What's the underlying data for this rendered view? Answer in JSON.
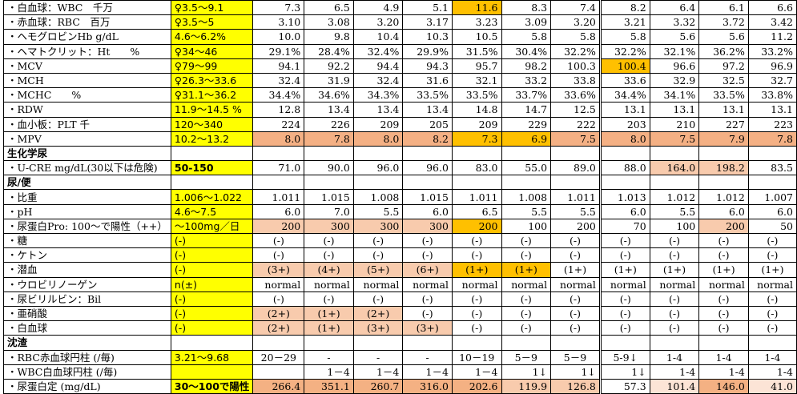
{
  "rows": [
    {
      "label": "・白血球：WBC　千万",
      "ref": "♀3.5～9.1",
      "vals": [
        "7.3",
        "6.5",
        "4.9",
        "5.1",
        "11.6",
        "8.3",
        "7.4",
        "8.2",
        "6.4",
        "6.1",
        "6.6"
      ],
      "fills": [
        "",
        "",
        "",
        "",
        "org",
        "",
        "",
        "",
        "",
        "",
        ""
      ],
      "align": "val"
    },
    {
      "label": "・赤血球：RBC　百万",
      "ref": "♀3.5～5",
      "vals": [
        "3.10",
        "3.08",
        "3.20",
        "3.17",
        "3.23",
        "3.09",
        "3.20",
        "3.21",
        "3.32",
        "3.72",
        "3.42"
      ],
      "fills": [
        "",
        "",
        "",
        "",
        "",
        "",
        "",
        "",
        "",
        "",
        ""
      ],
      "align": "val"
    },
    {
      "label": "・ヘモグロビンHb g/dL",
      "ref": "4.6～6.2%",
      "vals": [
        "10.0",
        "9.8",
        "10.4",
        "10.3",
        "10.5",
        "5.8",
        "5.8",
        "5.8",
        "5.6",
        "5.6",
        "11.2"
      ],
      "fills": [
        "",
        "",
        "",
        "",
        "",
        "",
        "",
        "",
        "",
        "",
        ""
      ],
      "align": "val"
    },
    {
      "label": "・ヘマトクリット：Ht　　%",
      "ref": "♀34～46",
      "vals": [
        "29.1%",
        "28.4%",
        "32.4%",
        "29.9%",
        "31.5%",
        "30.4%",
        "32.2%",
        "32.2%",
        "32.1%",
        "36.2%",
        "33.2%"
      ],
      "fills": [
        "",
        "",
        "",
        "",
        "",
        "",
        "",
        "",
        "",
        "",
        ""
      ],
      "align": "val"
    },
    {
      "label": "・MCV",
      "ref": "♀79～99",
      "vals": [
        "94.1",
        "92.2",
        "94.4",
        "94.3",
        "95.7",
        "98.2",
        "100.3",
        "100.4",
        "96.6",
        "97.2",
        "96.9"
      ],
      "fills": [
        "",
        "",
        "",
        "",
        "",
        "",
        "",
        "org",
        "",
        "",
        ""
      ],
      "align": "val"
    },
    {
      "label": "・MCH",
      "ref": "♀26.3～33.6",
      "vals": [
        "32.4",
        "31.9",
        "32.4",
        "31.6",
        "32.1",
        "33.2",
        "33.8",
        "33.6",
        "32.9",
        "32.5",
        "32.7"
      ],
      "fills": [
        "",
        "",
        "",
        "",
        "",
        "",
        "",
        "",
        "",
        "",
        ""
      ],
      "align": "val"
    },
    {
      "label": "・MCHC　　%",
      "ref": "♀31.1～36.2",
      "vals": [
        "34.4%",
        "34.6%",
        "34.3%",
        "33.5%",
        "33.5%",
        "33.7%",
        "33.6%",
        "34.4%",
        "34.1%",
        "33.5%",
        "33.8%"
      ],
      "fills": [
        "",
        "",
        "",
        "",
        "",
        "",
        "",
        "",
        "",
        "",
        ""
      ],
      "align": "val"
    },
    {
      "label": "・RDW",
      "ref": "11.9～14.5 %",
      "vals": [
        "12.8",
        "13.4",
        "13.4",
        "13.4",
        "14.8",
        "14.7",
        "12.5",
        "13.1",
        "13.1",
        "13.1",
        "13.1"
      ],
      "fills": [
        "",
        "",
        "",
        "",
        "",
        "",
        "",
        "",
        "",
        "",
        ""
      ],
      "align": "val"
    },
    {
      "label": "・血小板：PLT 千",
      "ref": "120～340",
      "vals": [
        "224",
        "226",
        "209",
        "205",
        "209",
        "229",
        "222",
        "203",
        "210",
        "227",
        "223"
      ],
      "fills": [
        "",
        "",
        "",
        "",
        "",
        "",
        "",
        "",
        "",
        "",
        ""
      ],
      "align": "val"
    },
    {
      "label": "・MPV",
      "ref": "10.2～13.2",
      "vals": [
        "8.0",
        "7.8",
        "8.0",
        "8.2",
        "7.3",
        "6.9",
        "7.5",
        "8.0",
        "7.5",
        "7.9",
        "7.8"
      ],
      "fills": [
        "gold",
        "gold",
        "gold",
        "gold",
        "org",
        "org",
        "gold",
        "gold",
        "gold",
        "gold",
        "gold"
      ],
      "align": "val"
    },
    {
      "label": "生化学尿",
      "ref": "",
      "vals": [
        "",
        "",
        "",
        "",
        "",
        "",
        "",
        "",
        "",
        "",
        ""
      ],
      "fills": [
        "",
        "",
        "",
        "",
        "",
        "",
        "",
        "",
        "",
        "",
        ""
      ],
      "align": "sec",
      "noref": true
    },
    {
      "label": "・U-CRE mg/dL(30以下は危険)",
      "ref": "50-150",
      "vals": [
        "71.0",
        "90.0",
        "96.0",
        "96.0",
        "83.0",
        "55.0",
        "89.0",
        "88.0",
        "164.0",
        "198.2",
        "83.5"
      ],
      "fills": [
        "",
        "",
        "",
        "",
        "",
        "",
        "",
        "",
        "mid",
        "mid",
        ""
      ],
      "align": "val",
      "redlabel": true,
      "redref": true
    },
    {
      "label": "尿/便",
      "ref": "",
      "vals": [
        "",
        "",
        "",
        "",
        "",
        "",
        "",
        "",
        "",
        "",
        ""
      ],
      "fills": [
        "",
        "",
        "",
        "",
        "",
        "",
        "",
        "",
        "",
        "",
        ""
      ],
      "align": "sec",
      "noref": true
    },
    {
      "label": "・比重",
      "ref": "1.006～1.022",
      "vals": [
        "1.011",
        "1.015",
        "1.008",
        "1.015",
        "1.011",
        "1.008",
        "1.011",
        "1.013",
        "1.012",
        "1.012",
        "1.007"
      ],
      "fills": [
        "",
        "",
        "",
        "",
        "",
        "",
        "",
        "",
        "",
        "",
        ""
      ],
      "align": "val"
    },
    {
      "label": "・pH",
      "ref": "4.6～7.5",
      "vals": [
        "6.0",
        "7.0",
        "5.5",
        "6.0",
        "6.5",
        "5.5",
        "5.5",
        "6.0",
        "5.5",
        "6.0",
        "6.0"
      ],
      "fills": [
        "",
        "",
        "",
        "",
        "",
        "",
        "",
        "",
        "",
        "",
        ""
      ],
      "align": "val"
    },
    {
      "label": "・尿蛋白Pro: 100～で陽性（++）",
      "ref": "～100mg／日",
      "vals": [
        "200",
        "300",
        "300",
        "300",
        "200",
        "100",
        "200",
        "70",
        "100",
        "200",
        "50"
      ],
      "fills": [
        "mid",
        "mid",
        "mid",
        "mid",
        "org",
        "",
        "",
        "",
        "",
        "mid",
        ""
      ],
      "align": "val",
      "redlabel": true
    },
    {
      "label": "・糖",
      "ref": "(-)",
      "vals": [
        "(-)",
        "(-)",
        "(-)",
        "(-)",
        "(-)",
        "(-)",
        "(-)",
        "(-)",
        "(-)",
        "(-)",
        "(-)"
      ],
      "fills": [
        "",
        "",
        "",
        "",
        "",
        "",
        "",
        "",
        "",
        "",
        ""
      ],
      "align": "ctr"
    },
    {
      "label": "・ケトン",
      "ref": "(-)",
      "vals": [
        "(-)",
        "(-)",
        "(-)",
        "(-)",
        "(-)",
        "(-)",
        "(-)",
        "(-)",
        "(-)",
        "(-)",
        "(-)"
      ],
      "fills": [
        "",
        "",
        "",
        "",
        "",
        "",
        "",
        "",
        "",
        "",
        ""
      ],
      "align": "ctr"
    },
    {
      "label": "・潜血",
      "ref": "(-)",
      "vals": [
        "(3+)",
        "(4+)",
        "(5+)",
        "(6+)",
        "(1+)",
        "(1+)",
        "(1+)",
        "(1+)",
        "(1+)",
        "(1+)",
        "(1+)"
      ],
      "fills": [
        "mid",
        "mid",
        "mid",
        "mid",
        "org",
        "org",
        "",
        "",
        "",
        "",
        ""
      ],
      "align": "ctr"
    },
    {
      "label": "・ウロビリノーゲン",
      "ref": "n(±)",
      "vals": [
        "normal",
        "normal",
        "normal",
        "normal",
        "normal",
        "normal",
        "normal",
        "normal",
        "normal",
        "normal",
        "normal"
      ],
      "fills": [
        "",
        "",
        "",
        "",
        "",
        "",
        "",
        "",
        "",
        "",
        ""
      ],
      "align": "val"
    },
    {
      "label": "・尿ビリルビン：Bil",
      "ref": "(-)",
      "vals": [
        "(-)",
        "(-)",
        "(-)",
        "(-)",
        "(-)",
        "(-)",
        "(-)",
        "(-)",
        "(-)",
        "(-)",
        "(-)"
      ],
      "fills": [
        "",
        "",
        "",
        "",
        "",
        "",
        "",
        "",
        "",
        "",
        ""
      ],
      "align": "ctr"
    },
    {
      "label": "・亜硝酸",
      "ref": "(-)",
      "vals": [
        "(2+)",
        "(1+)",
        "(2+)",
        "(-)",
        "(-)",
        "(-)",
        "(-)",
        "(-)",
        "(-)",
        "(-)",
        "(-)"
      ],
      "fills": [
        "mid",
        "mid",
        "mid",
        "",
        "",
        "",
        "",
        "",
        "",
        "",
        ""
      ],
      "align": "ctr"
    },
    {
      "label": "・白血球",
      "ref": "(-)",
      "vals": [
        "(2+)",
        "(1+)",
        "(3+)",
        "(3+)",
        "(-)",
        "(-)",
        "(-)",
        "(-)",
        "(-)",
        "(-)",
        "(-)"
      ],
      "fills": [
        "mid",
        "mid",
        "mid",
        "mid",
        "",
        "",
        "",
        "",
        "",
        "",
        ""
      ],
      "align": "ctr"
    },
    {
      "label": "沈渣",
      "ref": "",
      "vals": [
        "",
        "",
        "",
        "",
        "",
        "",
        "",
        "",
        "",
        "",
        ""
      ],
      "fills": [
        "",
        "",
        "",
        "",
        "",
        "",
        "",
        "",
        "",
        "",
        ""
      ],
      "align": "sec",
      "noref": true
    },
    {
      "label": "・RBC赤血球円柱 (/毎)",
      "ref": "3.21～9.68",
      "vals": [
        "20－29",
        "-",
        "-",
        "-",
        "10－19",
        "5－9",
        "5－9",
        "5-9↓",
        "1-4",
        "1-4",
        "1-4"
      ],
      "fills": [
        "",
        "",
        "",
        "",
        "",
        "",
        "",
        "",
        "",
        "",
        ""
      ],
      "align": "ctr"
    },
    {
      "label": "・WBC白血球円柱 (/毎)",
      "ref": "",
      "vals": [
        "",
        "1－4",
        "1－4",
        "1－4",
        "1－4",
        "1↓",
        "1↓",
        "1↓",
        "1-4",
        "1-4",
        "1-4"
      ],
      "fills": [
        "",
        "",
        "",
        "",
        "",
        "",
        "",
        "",
        "",
        "",
        ""
      ],
      "align": "val"
    },
    {
      "label": "・尿蛋白定 (mg/dL)",
      "ref": "30～100で陽性",
      "vals": [
        "266.4",
        "351.1",
        "260.7",
        "316.0",
        "202.6",
        "119.9",
        "126.8",
        "57.3",
        "101.4",
        "146.0",
        "41.0"
      ],
      "fills": [
        "brown",
        "brown",
        "brown",
        "brown",
        "brown",
        "mid",
        "mid",
        "",
        "light",
        "brown",
        "light"
      ],
      "align": "val",
      "redlabel": true,
      "redref": true
    }
  ]
}
